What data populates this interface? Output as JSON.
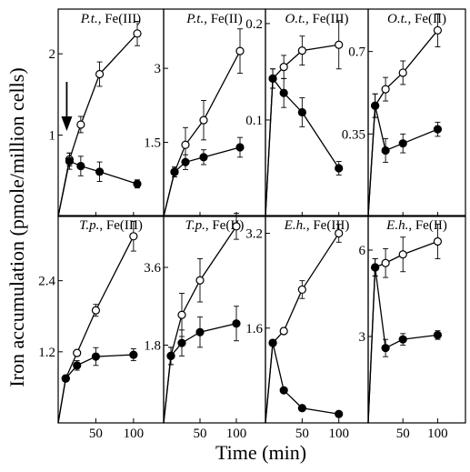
{
  "figure": {
    "ylabel": "Iron accumulation (pmole/million cells)",
    "xlabel": "Time (min)",
    "x_ticks": [
      50,
      100
    ],
    "x_range": [
      0,
      140
    ]
  },
  "chart_data": [
    {
      "type": "line",
      "title_species": "P.t.",
      "title_iron": ", Fe(III)",
      "x": [
        0,
        15,
        30,
        55,
        105
      ],
      "ylim": [
        0,
        2.55
      ],
      "yticks": [
        1,
        2
      ],
      "ytick_labels": [
        "1",
        "2"
      ],
      "arrow_annotation_x": 15,
      "series": [
        {
          "marker": "open",
          "values": [
            0,
            0.7,
            1.13,
            1.75,
            2.25
          ],
          "err": [
            0,
            0.08,
            0.1,
            0.15,
            0.15
          ]
        },
        {
          "marker": "filled",
          "values": [
            0,
            0.68,
            0.62,
            0.55,
            0.4
          ],
          "err": [
            0,
            0.1,
            0.12,
            0.12,
            0.05
          ]
        }
      ]
    },
    {
      "type": "line",
      "title_species": "P.t.",
      "title_iron": ", Fe(II)",
      "x": [
        0,
        15,
        30,
        55,
        105
      ],
      "ylim": [
        0,
        4.2
      ],
      "yticks": [
        1.5,
        3
      ],
      "ytick_labels": [
        "1.5",
        "3"
      ],
      "series": [
        {
          "marker": "open",
          "values": [
            0,
            0.9,
            1.45,
            1.95,
            3.35
          ],
          "err": [
            0,
            0.1,
            0.35,
            0.4,
            0.45
          ]
        },
        {
          "marker": "filled",
          "values": [
            0,
            0.9,
            1.1,
            1.2,
            1.4
          ],
          "err": [
            0,
            0.1,
            0.15,
            0.15,
            0.2
          ]
        }
      ]
    },
    {
      "type": "line",
      "title_species": "O.t.",
      "title_iron": ", Fe(III)",
      "x": [
        0,
        10,
        25,
        50,
        100
      ],
      "ylim": [
        0,
        0.215
      ],
      "yticks": [
        0.1,
        0.2
      ],
      "ytick_labels": [
        "0.1",
        "0.2"
      ],
      "series": [
        {
          "marker": "open",
          "values": [
            0,
            0.143,
            0.155,
            0.172,
            0.178
          ],
          "err": [
            0,
            0.01,
            0.012,
            0.015,
            0.025
          ]
        },
        {
          "marker": "filled",
          "values": [
            0,
            0.143,
            0.128,
            0.108,
            0.05
          ],
          "err": [
            0,
            0.01,
            0.015,
            0.015,
            0.007
          ]
        }
      ]
    },
    {
      "type": "line",
      "title_species": "O.t.",
      "title_iron": ", Fe(II)",
      "x": [
        0,
        10,
        25,
        50,
        100
      ],
      "ylim": [
        0,
        0.88
      ],
      "yticks": [
        0.35,
        0.7
      ],
      "ytick_labels": [
        "0.35",
        "0.7"
      ],
      "series": [
        {
          "marker": "open",
          "values": [
            0,
            0.47,
            0.54,
            0.61,
            0.79
          ],
          "err": [
            0,
            0.05,
            0.05,
            0.05,
            0.07
          ]
        },
        {
          "marker": "filled",
          "values": [
            0,
            0.47,
            0.28,
            0.31,
            0.37
          ],
          "err": [
            0,
            0.05,
            0.05,
            0.04,
            0.03
          ]
        }
      ]
    },
    {
      "type": "line",
      "title_species": "T.p.",
      "title_iron": ", Fe(III)",
      "x": [
        0,
        10,
        25,
        50,
        100
      ],
      "ylim": [
        0,
        3.5
      ],
      "yticks": [
        1.2,
        2.4
      ],
      "ytick_labels": [
        "1.2",
        "2.4"
      ],
      "series": [
        {
          "marker": "open",
          "values": [
            0,
            0.75,
            1.18,
            1.9,
            3.15
          ],
          "err": [
            0,
            0.05,
            0.05,
            0.1,
            0.25
          ]
        },
        {
          "marker": "filled",
          "values": [
            0,
            0.75,
            0.97,
            1.12,
            1.15
          ],
          "err": [
            0,
            0.05,
            0.08,
            0.15,
            0.1
          ]
        }
      ]
    },
    {
      "type": "line",
      "title_species": "T.p.",
      "title_iron": ", Fe(II)",
      "x": [
        0,
        10,
        25,
        50,
        100
      ],
      "ylim": [
        0,
        4.8
      ],
      "yticks": [
        1.8,
        3.6
      ],
      "ytick_labels": [
        "1.8",
        "3.6"
      ],
      "series": [
        {
          "marker": "open",
          "values": [
            0,
            1.55,
            2.5,
            3.3,
            4.55
          ],
          "err": [
            0,
            0.2,
            0.5,
            0.5,
            0.3
          ]
        },
        {
          "marker": "filled",
          "values": [
            0,
            1.55,
            1.85,
            2.1,
            2.3
          ],
          "err": [
            0,
            0.2,
            0.3,
            0.35,
            0.4
          ]
        }
      ]
    },
    {
      "type": "line",
      "title_species": "E.h.",
      "title_iron": ", Fe(III)",
      "x": [
        0,
        10,
        25,
        50,
        100
      ],
      "ylim": [
        0,
        3.5
      ],
      "yticks": [
        1.6,
        3.2
      ],
      "ytick_labels": [
        "1.6",
        "3.2"
      ],
      "series": [
        {
          "marker": "open",
          "values": [
            0,
            1.35,
            1.55,
            2.25,
            3.2
          ],
          "err": [
            0,
            0.05,
            0.05,
            0.15,
            0.15
          ]
        },
        {
          "marker": "filled",
          "values": [
            0,
            1.35,
            0.55,
            0.25,
            0.15
          ],
          "err": [
            0,
            0.05,
            0.03,
            0.02,
            0.02
          ]
        }
      ]
    },
    {
      "type": "line",
      "title_species": "E.h.",
      "title_iron": ", Fe(II)",
      "x": [
        0,
        10,
        25,
        50,
        100
      ],
      "ylim": [
        0,
        7.2
      ],
      "yticks": [
        3,
        6
      ],
      "ytick_labels": [
        "3",
        "6"
      ],
      "series": [
        {
          "marker": "open",
          "values": [
            0,
            5.4,
            5.55,
            5.85,
            6.3
          ],
          "err": [
            0,
            0.3,
            0.5,
            0.6,
            0.6
          ]
        },
        {
          "marker": "filled",
          "values": [
            0,
            5.4,
            2.6,
            2.9,
            3.05
          ],
          "err": [
            0,
            0.3,
            0.3,
            0.2,
            0.15
          ]
        }
      ]
    }
  ]
}
